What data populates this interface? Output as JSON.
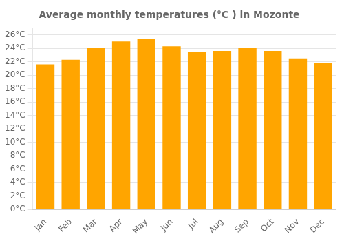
{
  "chart_data": {
    "type": "bar",
    "title": "Average monthly temperatures (°C ) in Mozonte",
    "categories": [
      "Jan",
      "Feb",
      "Mar",
      "Apr",
      "May",
      "Jun",
      "Jul",
      "Aug",
      "Sep",
      "Oct",
      "Nov",
      "Dec"
    ],
    "values": [
      21.6,
      22.3,
      24.0,
      25.0,
      25.4,
      24.3,
      23.5,
      23.6,
      24.0,
      23.6,
      22.5,
      21.8
    ],
    "color": "#FFA500",
    "ylim": [
      0,
      27
    ],
    "yticks": [
      {
        "value": 0,
        "label": "0°C"
      },
      {
        "value": 2,
        "label": "2°C"
      },
      {
        "value": 4,
        "label": "4°C"
      },
      {
        "value": 6,
        "label": "6°C"
      },
      {
        "value": 8,
        "label": "8°C"
      },
      {
        "value": 10,
        "label": "10°C"
      },
      {
        "value": 12,
        "label": "12°C"
      },
      {
        "value": 14,
        "label": "14°C"
      },
      {
        "value": 16,
        "label": "16°C"
      },
      {
        "value": 18,
        "label": "18°C"
      },
      {
        "value": 20,
        "label": "20°C"
      },
      {
        "value": 22,
        "label": "22°C"
      },
      {
        "value": 24,
        "label": "24°C"
      },
      {
        "value": 26,
        "label": "26°C"
      }
    ],
    "grid": true
  }
}
